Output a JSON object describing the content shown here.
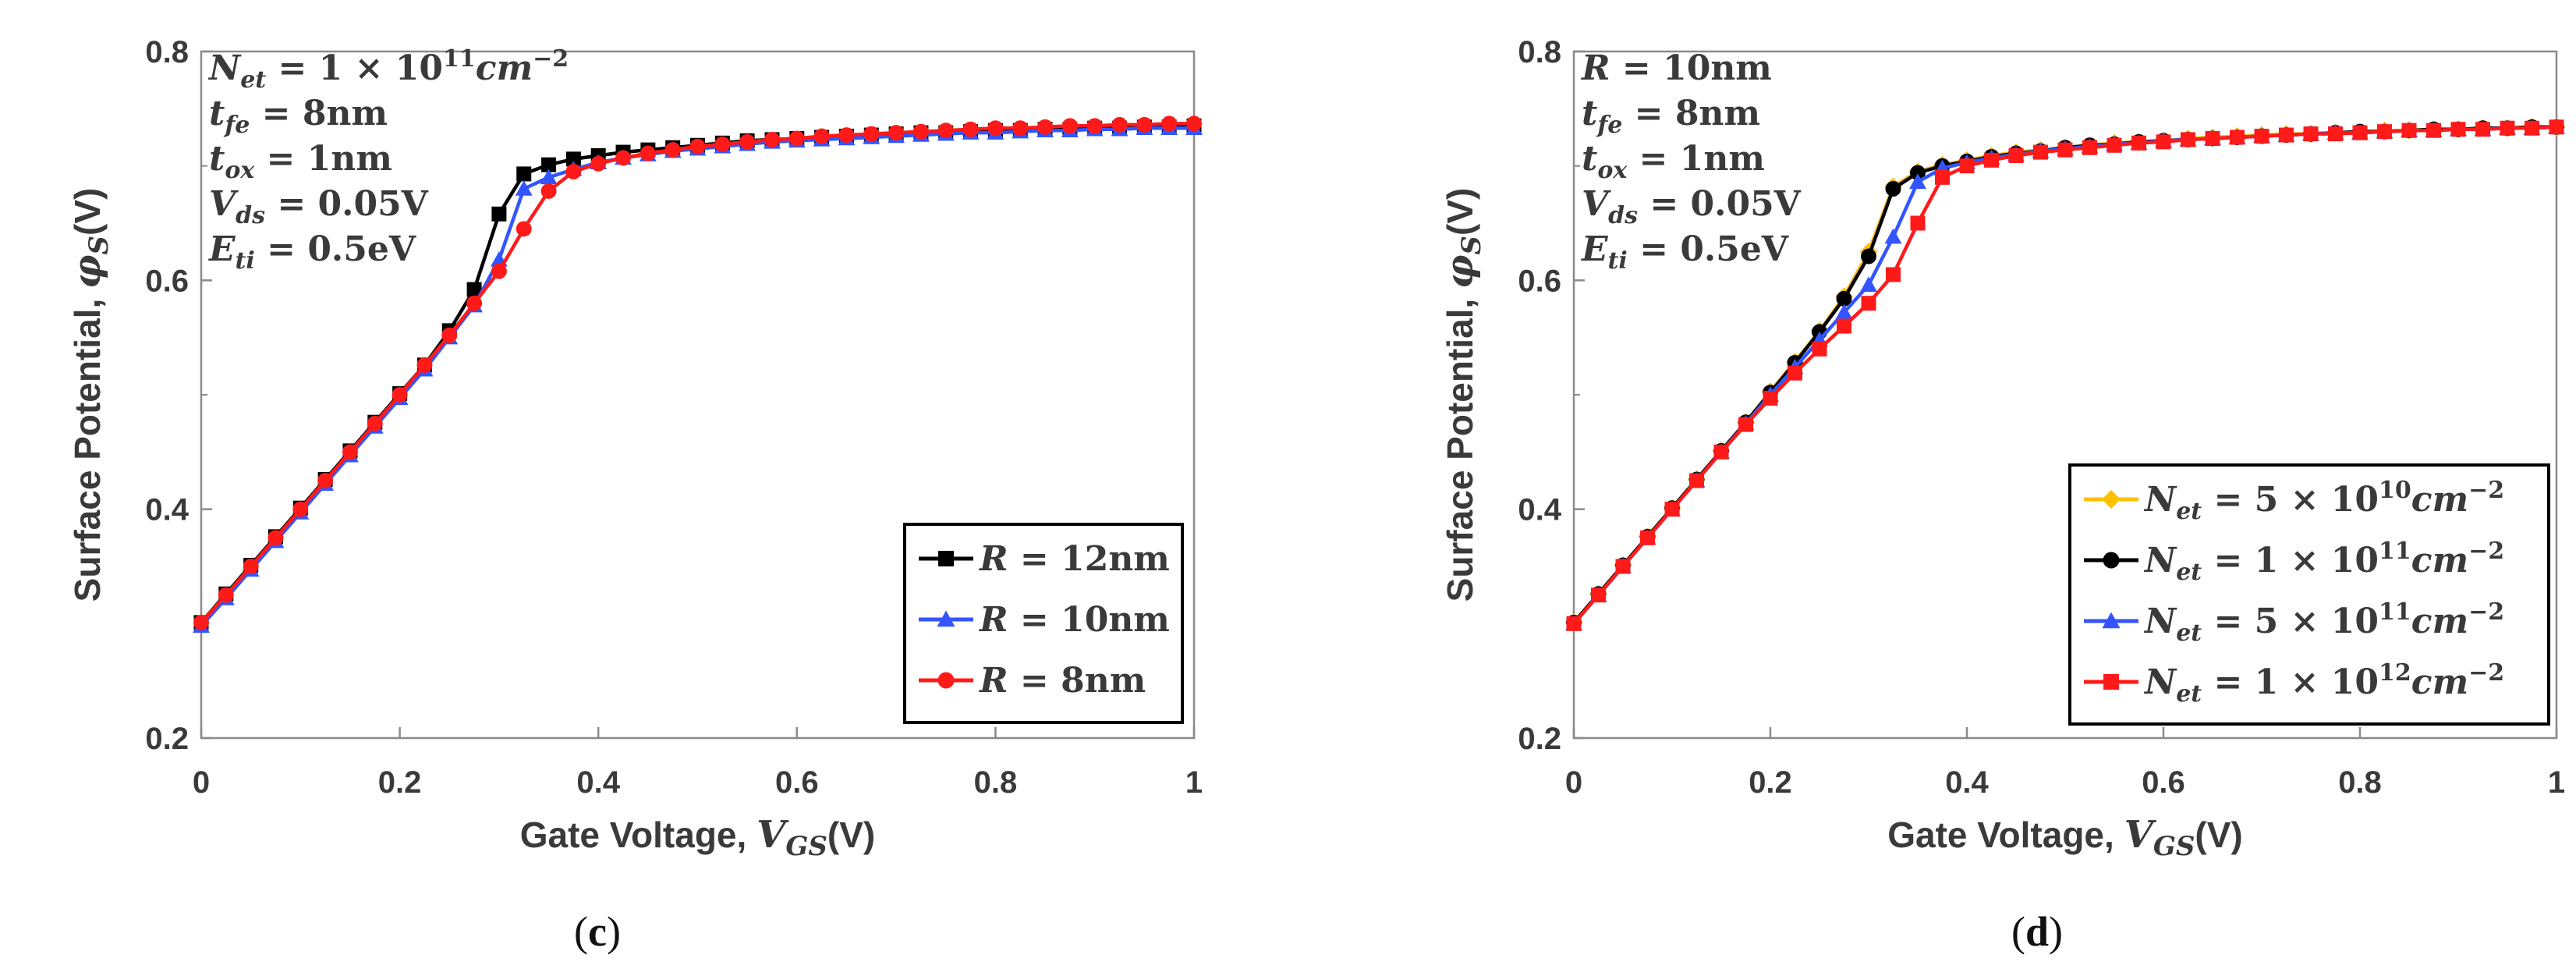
{
  "chart_data": [
    {
      "panel": "c",
      "type": "line",
      "caption": {
        "open": "(",
        "letter": "c",
        "close": ")"
      },
      "xlabel": {
        "text": "Gate Voltage, ",
        "var": "V",
        "sub": "GS",
        "unit": "(V)"
      },
      "ylabel": {
        "text": "Surface Potential, ",
        "var": "φ",
        "sub": "S",
        "unit": "(V)"
      },
      "xlim": [
        0,
        1
      ],
      "ylim": [
        0.2,
        0.8
      ],
      "xticks": [
        0,
        0.2,
        0.4,
        0.6,
        0.8,
        1
      ],
      "xtick_labels": [
        "0",
        "0.2",
        "0.4",
        "0.6",
        "0.8",
        "1"
      ],
      "yticks": [
        0.2,
        0.4,
        0.6,
        0.8
      ],
      "ytick_labels": [
        "0.2",
        "0.4",
        "0.6",
        "0.8"
      ],
      "grid": false,
      "legend_position": "bottom-right",
      "annotations": [
        {
          "var": "N",
          "sub": "et",
          "rest": " = 1 × 10",
          "sup": "11",
          "unit": "cm",
          "unit_sup": "−2"
        },
        {
          "var": "t",
          "sub": "fe",
          "rest": " = 8nm"
        },
        {
          "var": "t",
          "sub": "ox",
          "rest": " = 1nm"
        },
        {
          "var": "V",
          "sub": "ds",
          "rest": " = 0.05V"
        },
        {
          "var": "E",
          "sub": "ti",
          "rest": " = 0.5eV"
        }
      ],
      "x": [
        0,
        0.025,
        0.05,
        0.075,
        0.1,
        0.125,
        0.15,
        0.175,
        0.2,
        0.225,
        0.25,
        0.275,
        0.3,
        0.325,
        0.35,
        0.375,
        0.4,
        0.425,
        0.45,
        0.475,
        0.5,
        0.525,
        0.55,
        0.575,
        0.6,
        0.625,
        0.65,
        0.675,
        0.7,
        0.725,
        0.75,
        0.775,
        0.8,
        0.825,
        0.85,
        0.875,
        0.9,
        0.925,
        0.95,
        0.975,
        1
      ],
      "series": [
        {
          "name": "R = 12nm",
          "legend": {
            "var": "R",
            "rest": " = 12nm"
          },
          "color": "#000000",
          "marker": "square",
          "values": [
            0.301,
            0.326,
            0.351,
            0.376,
            0.401,
            0.426,
            0.451,
            0.476,
            0.501,
            0.526,
            0.556,
            0.592,
            0.658,
            0.693,
            0.701,
            0.706,
            0.709,
            0.712,
            0.714,
            0.716,
            0.718,
            0.72,
            0.722,
            0.723,
            0.724,
            0.725,
            0.726,
            0.727,
            0.728,
            0.729,
            0.729,
            0.73,
            0.731,
            0.731,
            0.732,
            0.732,
            0.733,
            0.733,
            0.734,
            0.734,
            0.735
          ]
        },
        {
          "name": "R = 10nm",
          "legend": {
            "var": "R",
            "rest": " = 10nm"
          },
          "color": "#3355ff",
          "marker": "triangle",
          "values": [
            0.298,
            0.322,
            0.347,
            0.372,
            0.397,
            0.422,
            0.447,
            0.472,
            0.497,
            0.522,
            0.55,
            0.578,
            0.618,
            0.68,
            0.69,
            0.697,
            0.703,
            0.707,
            0.71,
            0.713,
            0.715,
            0.717,
            0.719,
            0.721,
            0.722,
            0.723,
            0.724,
            0.725,
            0.726,
            0.727,
            0.728,
            0.729,
            0.729,
            0.73,
            0.731,
            0.731,
            0.732,
            0.732,
            0.733,
            0.733,
            0.733
          ]
        },
        {
          "name": "R = 8nm",
          "legend": {
            "var": "R",
            "rest": " = 8nm"
          },
          "color": "#ff1a1a",
          "marker": "circle",
          "values": [
            0.301,
            0.325,
            0.35,
            0.375,
            0.4,
            0.425,
            0.45,
            0.475,
            0.5,
            0.526,
            0.552,
            0.58,
            0.608,
            0.645,
            0.678,
            0.695,
            0.702,
            0.707,
            0.711,
            0.714,
            0.717,
            0.719,
            0.721,
            0.723,
            0.724,
            0.726,
            0.727,
            0.728,
            0.729,
            0.73,
            0.731,
            0.732,
            0.733,
            0.733,
            0.734,
            0.735,
            0.735,
            0.736,
            0.736,
            0.737,
            0.737
          ]
        }
      ]
    },
    {
      "panel": "d",
      "type": "line",
      "caption": {
        "open": "(",
        "letter": "d",
        "close": ")"
      },
      "xlabel": {
        "text": "Gate Voltage, ",
        "var": "V",
        "sub": "GS",
        "unit": "(V)"
      },
      "ylabel": {
        "text": "Surface Potential, ",
        "var": "φ",
        "sub": "S",
        "unit": "(V)"
      },
      "xlim": [
        0,
        1
      ],
      "ylim": [
        0.2,
        0.8
      ],
      "xticks": [
        0,
        0.2,
        0.4,
        0.6,
        0.8,
        1
      ],
      "xtick_labels": [
        "0",
        "0.2",
        "0.4",
        "0.6",
        "0.8",
        "1"
      ],
      "yticks": [
        0.2,
        0.4,
        0.6,
        0.8
      ],
      "ytick_labels": [
        "0.2",
        "0.4",
        "0.6",
        "0.8"
      ],
      "grid": false,
      "legend_position": "bottom-right",
      "annotations": [
        {
          "var": "R",
          "sub": "",
          "rest": " = 10nm"
        },
        {
          "var": "t",
          "sub": "fe",
          "rest": " = 8nm"
        },
        {
          "var": "t",
          "sub": "ox",
          "rest": " = 1nm"
        },
        {
          "var": "V",
          "sub": "ds",
          "rest": " = 0.05V"
        },
        {
          "var": "E",
          "sub": "ti",
          "rest": " = 0.5eV"
        }
      ],
      "x": [
        0,
        0.025,
        0.05,
        0.075,
        0.1,
        0.125,
        0.15,
        0.175,
        0.2,
        0.225,
        0.25,
        0.275,
        0.3,
        0.325,
        0.35,
        0.375,
        0.4,
        0.425,
        0.45,
        0.475,
        0.5,
        0.525,
        0.55,
        0.575,
        0.6,
        0.625,
        0.65,
        0.675,
        0.7,
        0.725,
        0.75,
        0.775,
        0.8,
        0.825,
        0.85,
        0.875,
        0.9,
        0.925,
        0.95,
        0.975,
        1
      ],
      "series": [
        {
          "name": "N_et = 5 × 10^10 cm^-2",
          "legend": {
            "var": "N",
            "sub": "et",
            "rest": " = 5 × 10",
            "sup": "10",
            "unit": "cm",
            "unit_sup": "−2"
          },
          "color": "#ffc000",
          "marker": "diamond",
          "values": [
            0.301,
            0.326,
            0.351,
            0.376,
            0.401,
            0.426,
            0.451,
            0.476,
            0.503,
            0.529,
            0.556,
            0.586,
            0.625,
            0.682,
            0.695,
            0.701,
            0.705,
            0.709,
            0.712,
            0.714,
            0.716,
            0.718,
            0.72,
            0.721,
            0.722,
            0.724,
            0.725,
            0.726,
            0.727,
            0.728,
            0.728,
            0.729,
            0.73,
            0.731,
            0.731,
            0.732,
            0.732,
            0.733,
            0.733,
            0.734,
            0.734
          ]
        },
        {
          "name": "N_et = 1 × 10^11 cm^-2",
          "legend": {
            "var": "N",
            "sub": "et",
            "rest": " = 1 × 10",
            "sup": "11",
            "unit": "cm",
            "unit_sup": "−2"
          },
          "color": "#000000",
          "marker": "circle",
          "values": [
            0.301,
            0.326,
            0.351,
            0.376,
            0.401,
            0.426,
            0.451,
            0.476,
            0.502,
            0.528,
            0.555,
            0.584,
            0.621,
            0.68,
            0.694,
            0.7,
            0.704,
            0.708,
            0.711,
            0.713,
            0.716,
            0.718,
            0.719,
            0.721,
            0.722,
            0.723,
            0.724,
            0.725,
            0.726,
            0.727,
            0.728,
            0.729,
            0.73,
            0.73,
            0.731,
            0.732,
            0.732,
            0.733,
            0.733,
            0.734,
            0.734
          ]
        },
        {
          "name": "N_et = 5 × 10^11 cm^-2",
          "legend": {
            "var": "N",
            "sub": "et",
            "rest": " = 5 × 10",
            "sup": "11",
            "unit": "cm",
            "unit_sup": "−2"
          },
          "color": "#3355ff",
          "marker": "triangle",
          "values": [
            0.3,
            0.325,
            0.35,
            0.375,
            0.4,
            0.425,
            0.45,
            0.475,
            0.5,
            0.524,
            0.548,
            0.572,
            0.596,
            0.638,
            0.686,
            0.698,
            0.703,
            0.707,
            0.71,
            0.713,
            0.715,
            0.717,
            0.719,
            0.72,
            0.722,
            0.723,
            0.724,
            0.725,
            0.726,
            0.727,
            0.728,
            0.729,
            0.729,
            0.73,
            0.731,
            0.731,
            0.732,
            0.732,
            0.733,
            0.733,
            0.734
          ]
        },
        {
          "name": "N_et = 1 × 10^12 cm^-2",
          "legend": {
            "var": "N",
            "sub": "et",
            "rest": " = 1 × 10",
            "sup": "12",
            "unit": "cm",
            "unit_sup": "−2"
          },
          "color": "#ff1a1a",
          "marker": "square",
          "values": [
            0.3,
            0.325,
            0.35,
            0.375,
            0.4,
            0.425,
            0.45,
            0.474,
            0.497,
            0.519,
            0.54,
            0.56,
            0.58,
            0.605,
            0.65,
            0.69,
            0.7,
            0.705,
            0.709,
            0.712,
            0.714,
            0.716,
            0.718,
            0.72,
            0.721,
            0.723,
            0.724,
            0.725,
            0.726,
            0.727,
            0.728,
            0.728,
            0.729,
            0.73,
            0.731,
            0.731,
            0.732,
            0.732,
            0.733,
            0.733,
            0.734
          ]
        }
      ]
    }
  ]
}
